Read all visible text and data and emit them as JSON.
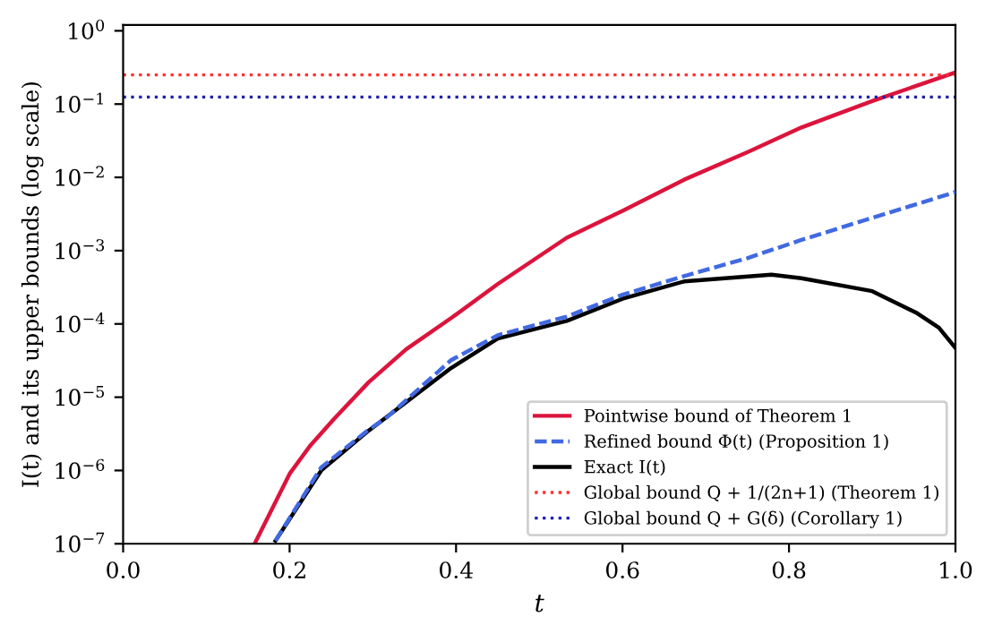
{
  "chart_data": {
    "type": "line",
    "xlabel": "t",
    "ylabel": "I(t) and its upper bounds (log scale)",
    "log": "y",
    "grid": false,
    "legend": "bottom right",
    "xlim": [
      0.0,
      1.0
    ],
    "xticks": [
      {
        "value": 0.0,
        "label": "0.0"
      },
      {
        "value": 0.2,
        "label": "0.2"
      },
      {
        "value": 0.4,
        "label": "0.4"
      },
      {
        "value": 0.6,
        "label": "0.6"
      },
      {
        "value": 0.8,
        "label": "0.8"
      },
      {
        "value": 1.0,
        "label": "1.0"
      }
    ],
    "ylim": [
      1e-07,
      1.2
    ],
    "yticks": [
      {
        "value": 1e-07,
        "label": "10$^{−7}$"
      },
      {
        "value": 1e-06,
        "label": "10$^{−6}$"
      },
      {
        "value": 1e-05,
        "label": "10$^{−5}$"
      },
      {
        "value": 0.0001,
        "label": "10$^{−4}$"
      },
      {
        "value": 0.001,
        "label": "10$^{−3}$"
      },
      {
        "value": 0.01,
        "label": "10$^{−2}$"
      },
      {
        "value": 0.1,
        "label": "10$^{−1}$"
      },
      {
        "value": 1,
        "label": "10$^{0}$"
      }
    ],
    "series": [
      {
        "name": "Pointwise bound of Theorem 1",
        "color": "#dc143c",
        "line_style": "solid",
        "x": [
          0.158,
          0.2,
          0.225,
          0.253,
          0.295,
          0.34,
          0.394,
          0.45,
          0.533,
          0.6,
          0.674,
          0.75,
          0.815,
          0.9,
          1.0
        ],
        "values": [
          1e-07,
          9e-07,
          2.2e-06,
          5e-06,
          1.6e-05,
          4.5e-05,
          0.00012,
          0.00035,
          0.0015,
          0.0035,
          0.0093,
          0.022,
          0.048,
          0.11,
          0.27
        ]
      },
      {
        "name": "Refined bound Φ(t) (Proposition 1)",
        "color": "#4169e1",
        "line_style": "dashed",
        "x": [
          0.183,
          0.238,
          0.295,
          0.316,
          0.394,
          0.45,
          0.533,
          0.6,
          0.674,
          0.75,
          0.815,
          0.9,
          1.0
        ],
        "values": [
          1.1e-07,
          1.1e-06,
          3.6e-06,
          5.2e-06,
          3.2e-05,
          7e-05,
          0.000126,
          0.00025,
          0.00045,
          0.00079,
          0.0014,
          0.0028,
          0.0063
        ]
      },
      {
        "name": "Exact I(t)",
        "color": "#000000",
        "line_style": "solid",
        "x": [
          0.183,
          0.238,
          0.295,
          0.394,
          0.45,
          0.533,
          0.6,
          0.674,
          0.779,
          0.815,
          0.9,
          0.954,
          0.98,
          1.0
        ],
        "values": [
          1.1e-07,
          1e-06,
          3.5e-06,
          2.5e-05,
          6.3e-05,
          0.00011,
          0.00022,
          0.00038,
          0.00047,
          0.00042,
          0.00028,
          0.00014,
          8.9e-05,
          4.7e-05
        ]
      }
    ],
    "ref_lines": [
      {
        "axis": "y",
        "value": 0.25,
        "label": "Global bound Q + 1/(2n+1) (Theorem 1)",
        "color": "#ff3030",
        "line_style": "dotted"
      },
      {
        "axis": "y",
        "value": 0.125,
        "label": "Global bound Q + G(δ) (Corollary 1)",
        "color": "#2020b0",
        "line_style": "dotted"
      }
    ]
  }
}
